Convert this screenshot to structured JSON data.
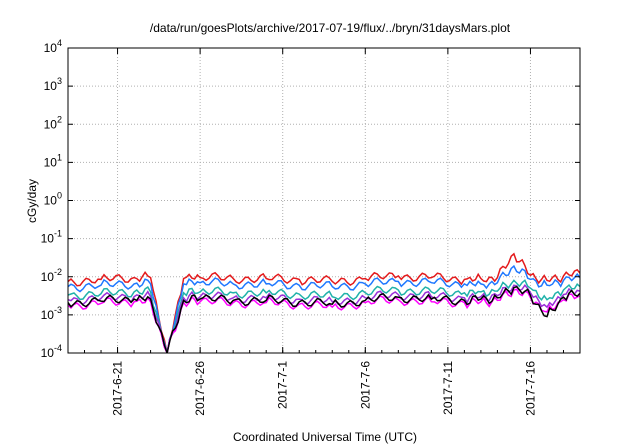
{
  "chart_data": {
    "type": "line",
    "title": "/data/run/goesPlots/archive/2017-07-19/flux/../bryn/31daysMars.plot",
    "xlabel": "Coordinated Universal Time (UTC)",
    "ylabel": "cGy/day",
    "x_range": [
      "2017-06-18",
      "2017-07-19"
    ],
    "ylim": [
      0.0001,
      10000
    ],
    "y_scale": "log",
    "grid": true,
    "x_ticks": [
      "2017-6-21",
      "2017-6-26",
      "2017-7-1",
      "2017-7-6",
      "2017-7-11",
      "2017-7-16"
    ],
    "y_ticks": [
      {
        "base": "10",
        "exp": "-4",
        "value": 0.0001
      },
      {
        "base": "10",
        "exp": "-3",
        "value": 0.001
      },
      {
        "base": "10",
        "exp": "-2",
        "value": 0.01
      },
      {
        "base": "10",
        "exp": "-1",
        "value": 0.1
      },
      {
        "base": "10",
        "exp": "0",
        "value": 1
      },
      {
        "base": "10",
        "exp": "1",
        "value": 10
      },
      {
        "base": "10",
        "exp": "2",
        "value": 100
      },
      {
        "base": "10",
        "exp": "3",
        "value": 1000
      },
      {
        "base": "10",
        "exp": "4",
        "value": 10000
      }
    ],
    "x_dates": [
      "2017-06-18",
      "2017-06-20",
      "2017-06-22",
      "2017-06-23",
      "2017-06-24",
      "2017-06-25",
      "2017-06-26",
      "2017-06-28",
      "2017-06-30",
      "2017-07-02",
      "2017-07-04",
      "2017-07-06",
      "2017-07-08",
      "2017-07-10",
      "2017-07-12",
      "2017-07-13",
      "2017-07-14",
      "2017-07-15",
      "2017-07-16",
      "2017-07-17",
      "2017-07-18",
      "2017-07-19"
    ],
    "series": [
      {
        "color": "#e41a1c",
        "values": [
          0.0075,
          0.0085,
          0.0095,
          0.0095,
          0.0001,
          0.009,
          0.0095,
          0.009,
          0.009,
          0.0085,
          0.0075,
          0.009,
          0.0105,
          0.0095,
          0.0085,
          0.009,
          0.0095,
          0.04,
          0.011,
          0.008,
          0.0105,
          0.0125
        ]
      },
      {
        "color": "#1f78ff",
        "values": [
          0.0055,
          0.006,
          0.0065,
          0.0065,
          0.0001,
          0.0065,
          0.007,
          0.0065,
          0.0065,
          0.006,
          0.0055,
          0.0065,
          0.0075,
          0.007,
          0.0065,
          0.0065,
          0.007,
          0.019,
          0.0085,
          0.006,
          0.008,
          0.0095
        ]
      },
      {
        "color": "#20b2aa",
        "values": [
          0.0033,
          0.0036,
          0.004,
          0.004,
          0.0001,
          0.0038,
          0.004,
          0.0038,
          0.0038,
          0.0035,
          0.003,
          0.0038,
          0.0045,
          0.004,
          0.0038,
          0.004,
          0.0042,
          0.008,
          0.005,
          0.0025,
          0.0045,
          0.0055
        ]
      },
      {
        "color": "#9b30d9",
        "values": [
          0.0025,
          0.0027,
          0.003,
          0.003,
          0.0001,
          0.0028,
          0.003,
          0.0028,
          0.0028,
          0.0026,
          0.0022,
          0.0028,
          0.0034,
          0.003,
          0.0028,
          0.003,
          0.0032,
          0.006,
          0.0038,
          0.0016,
          0.0034,
          0.0042
        ]
      },
      {
        "color": "#ff00ff",
        "values": [
          0.0018,
          0.002,
          0.0022,
          0.0022,
          0.0001,
          0.0021,
          0.0022,
          0.0021,
          0.0021,
          0.0019,
          0.0016,
          0.0021,
          0.0025,
          0.0022,
          0.0021,
          0.0022,
          0.0024,
          0.0045,
          0.0028,
          0.0012,
          0.0025,
          0.0032
        ]
      },
      {
        "color": "#000000",
        "values": [
          0.0021,
          0.0023,
          0.0026,
          0.0026,
          0.0001,
          0.0024,
          0.0026,
          0.0024,
          0.0024,
          0.0022,
          0.0019,
          0.0024,
          0.0029,
          0.0026,
          0.0024,
          0.0026,
          0.0028,
          0.0052,
          0.0032,
          0.0009,
          0.0029,
          0.0037
        ]
      }
    ]
  }
}
